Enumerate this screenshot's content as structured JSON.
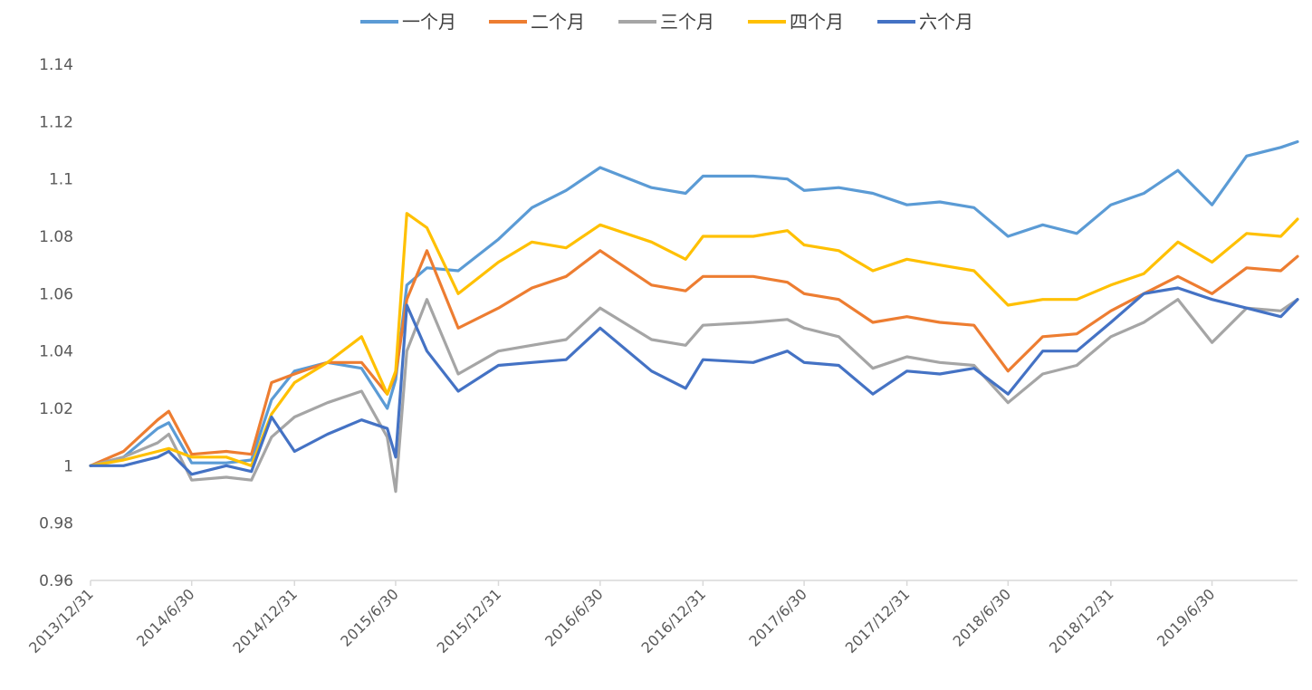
{
  "chart_data": {
    "type": "line",
    "title": "",
    "xlabel": "",
    "ylabel": "",
    "ylim": [
      0.96,
      1.14
    ],
    "y_ticks": [
      "0.96",
      "0.98",
      "1",
      "1.02",
      "1.04",
      "1.06",
      "1.08",
      "1.1",
      "1.12",
      "1.14"
    ],
    "x_range": [
      "2013-12-31",
      "2019-11-30"
    ],
    "x_ticks": [
      {
        "label": "2013/12/31",
        "date": "2013-12-31"
      },
      {
        "label": "2014/6/30",
        "date": "2014-06-30"
      },
      {
        "label": "2014/12/31",
        "date": "2014-12-31"
      },
      {
        "label": "2015/6/30",
        "date": "2015-06-30"
      },
      {
        "label": "2015/12/31",
        "date": "2015-12-31"
      },
      {
        "label": "2016/6/30",
        "date": "2016-06-30"
      },
      {
        "label": "2016/12/31",
        "date": "2016-12-31"
      },
      {
        "label": "2017/6/30",
        "date": "2017-06-30"
      },
      {
        "label": "2017/12/31",
        "date": "2017-12-31"
      },
      {
        "label": "2018/6/30",
        "date": "2018-06-30"
      },
      {
        "label": "2018/12/31",
        "date": "2018-12-31"
      },
      {
        "label": "2019/6/30",
        "date": "2019-06-30"
      }
    ],
    "grid": false,
    "legend_position": "top",
    "x": [
      "2013-12-31",
      "2014-02-28",
      "2014-04-30",
      "2014-05-20",
      "2014-06-30",
      "2014-08-31",
      "2014-10-15",
      "2014-11-20",
      "2014-12-31",
      "2015-02-28",
      "2015-04-30",
      "2015-06-15",
      "2015-06-30",
      "2015-07-20",
      "2015-08-25",
      "2015-10-20",
      "2015-12-31",
      "2016-02-29",
      "2016-04-30",
      "2016-06-30",
      "2016-09-30",
      "2016-11-30",
      "2016-12-31",
      "2017-03-31",
      "2017-05-31",
      "2017-06-30",
      "2017-08-31",
      "2017-10-31",
      "2017-12-31",
      "2018-02-28",
      "2018-04-30",
      "2018-06-30",
      "2018-08-31",
      "2018-10-31",
      "2018-12-31",
      "2019-02-28",
      "2019-04-30",
      "2019-06-30",
      "2019-08-31",
      "2019-10-31",
      "2019-11-30"
    ],
    "series": [
      {
        "name": "一个月",
        "color": "#5B9BD5",
        "values": [
          1.0,
          1.003,
          1.013,
          1.015,
          1.001,
          1.001,
          1.002,
          1.023,
          1.033,
          1.036,
          1.034,
          1.02,
          1.03,
          1.063,
          1.069,
          1.068,
          1.079,
          1.09,
          1.096,
          1.104,
          1.097,
          1.095,
          1.101,
          1.101,
          1.1,
          1.096,
          1.097,
          1.095,
          1.091,
          1.092,
          1.09,
          1.08,
          1.084,
          1.081,
          1.091,
          1.095,
          1.103,
          1.091,
          1.108,
          1.111,
          1.113
        ]
      },
      {
        "name": "二个月",
        "color": "#ED7D31",
        "values": [
          1.0,
          1.005,
          1.016,
          1.019,
          1.004,
          1.005,
          1.004,
          1.029,
          1.032,
          1.036,
          1.036,
          1.025,
          1.032,
          1.058,
          1.075,
          1.048,
          1.055,
          1.062,
          1.066,
          1.075,
          1.063,
          1.061,
          1.066,
          1.066,
          1.064,
          1.06,
          1.058,
          1.05,
          1.052,
          1.05,
          1.049,
          1.033,
          1.045,
          1.046,
          1.054,
          1.06,
          1.066,
          1.06,
          1.069,
          1.068,
          1.073
        ]
      },
      {
        "name": "三个月",
        "color": "#A5A5A5",
        "values": [
          1.0,
          1.003,
          1.008,
          1.011,
          0.995,
          0.996,
          0.995,
          1.01,
          1.017,
          1.022,
          1.026,
          1.01,
          0.991,
          1.04,
          1.058,
          1.032,
          1.04,
          1.042,
          1.044,
          1.055,
          1.044,
          1.042,
          1.049,
          1.05,
          1.051,
          1.048,
          1.045,
          1.034,
          1.038,
          1.036,
          1.035,
          1.022,
          1.032,
          1.035,
          1.045,
          1.05,
          1.058,
          1.043,
          1.055,
          1.054,
          1.058
        ]
      },
      {
        "name": "四个月",
        "color": "#FFC000",
        "values": [
          1.0,
          1.002,
          1.005,
          1.006,
          1.003,
          1.003,
          1.0,
          1.018,
          1.029,
          1.036,
          1.045,
          1.025,
          1.033,
          1.088,
          1.083,
          1.06,
          1.071,
          1.078,
          1.076,
          1.084,
          1.078,
          1.072,
          1.08,
          1.08,
          1.082,
          1.077,
          1.075,
          1.068,
          1.072,
          1.07,
          1.068,
          1.056,
          1.058,
          1.058,
          1.063,
          1.067,
          1.078,
          1.071,
          1.081,
          1.08,
          1.086
        ]
      },
      {
        "name": "六个月",
        "color": "#4472C4",
        "values": [
          1.0,
          1.0,
          1.003,
          1.005,
          0.997,
          1.0,
          0.998,
          1.017,
          1.005,
          1.011,
          1.016,
          1.013,
          1.003,
          1.056,
          1.04,
          1.026,
          1.035,
          1.036,
          1.037,
          1.048,
          1.033,
          1.027,
          1.037,
          1.036,
          1.04,
          1.036,
          1.035,
          1.025,
          1.033,
          1.032,
          1.034,
          1.025,
          1.04,
          1.04,
          1.05,
          1.06,
          1.062,
          1.058,
          1.055,
          1.052,
          1.058
        ]
      }
    ]
  }
}
